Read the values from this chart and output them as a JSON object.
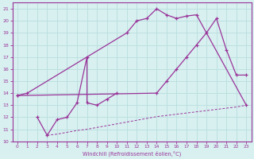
{
  "line1_x": [
    0,
    1,
    11,
    12,
    13,
    14,
    15,
    16,
    17,
    18,
    23
  ],
  "line1_y": [
    13.8,
    14.0,
    19.0,
    20.0,
    20.2,
    21.0,
    20.5,
    20.2,
    20.4,
    20.5,
    13.0
  ],
  "line2_x": [
    0,
    14,
    15,
    16,
    17,
    18,
    19,
    20,
    21,
    22,
    23
  ],
  "line2_y": [
    13.8,
    14.0,
    15.0,
    16.0,
    17.0,
    18.0,
    19.0,
    20.2,
    17.6,
    15.5,
    15.5
  ],
  "line3_x": [
    3,
    4,
    5,
    6,
    7,
    8,
    9,
    10,
    11,
    12,
    13,
    14,
    15,
    16,
    17,
    18,
    19,
    20,
    21,
    22,
    23
  ],
  "line3_y": [
    10.5,
    10.6,
    10.75,
    10.9,
    11.0,
    11.15,
    11.3,
    11.45,
    11.6,
    11.75,
    11.9,
    12.05,
    12.15,
    12.25,
    12.35,
    12.45,
    12.55,
    12.65,
    12.75,
    12.85,
    13.0
  ],
  "line4_x": [
    2,
    3,
    4,
    5,
    6,
    7,
    7,
    8,
    9,
    10
  ],
  "line4_y": [
    12.0,
    10.5,
    11.8,
    12.0,
    13.2,
    17.0,
    13.2,
    13.0,
    13.5,
    14.0
  ],
  "color": "#993399",
  "bg_color": "#d8f0f0",
  "grid_color": "#b8dede",
  "xlabel": "Windchill (Refroidissement éolien,°C)",
  "xlim": [
    -0.5,
    23.5
  ],
  "ylim": [
    10,
    21.5
  ],
  "xticks": [
    0,
    1,
    2,
    3,
    4,
    5,
    6,
    7,
    8,
    9,
    10,
    11,
    12,
    13,
    14,
    15,
    16,
    17,
    18,
    19,
    20,
    21,
    22,
    23
  ],
  "yticks": [
    10,
    11,
    12,
    13,
    14,
    15,
    16,
    17,
    18,
    19,
    20,
    21
  ]
}
